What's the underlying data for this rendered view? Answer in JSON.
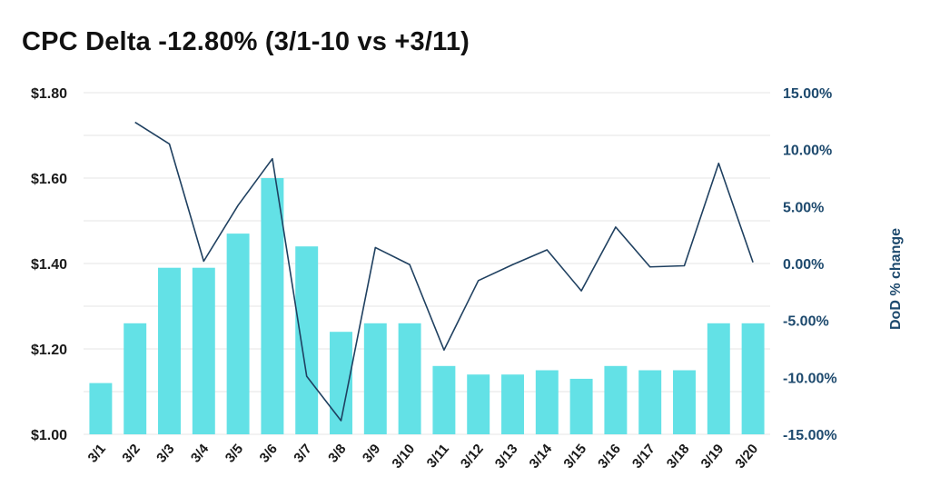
{
  "title": "CPC Delta -12.80% (3/1-10 vs +3/11)",
  "colors": {
    "bar": "#63e1e6",
    "line": "#1f4060",
    "right_axis": "#1e4a6e",
    "grid": "#e6e6e6"
  },
  "chart_data": {
    "type": "bar",
    "title": "CPC Delta -12.80% (3/1-10 vs +3/11)",
    "categories": [
      "3/1",
      "3/2",
      "3/3",
      "3/4",
      "3/5",
      "3/6",
      "3/7",
      "3/8",
      "3/9",
      "3/10",
      "3/11",
      "3/12",
      "3/13",
      "3/14",
      "3/15",
      "3/16",
      "3/17",
      "3/18",
      "3/19",
      "3/20"
    ],
    "left_axis": {
      "ylim": [
        1.0,
        1.8
      ],
      "ticks": [
        "$1.80",
        "$1.60",
        "$1.40",
        "$1.20",
        "$1.00"
      ],
      "tick_values": [
        1.8,
        1.6,
        1.4,
        1.2,
        1.0
      ]
    },
    "right_axis": {
      "label": "DoD % change",
      "ylim": [
        -15,
        15
      ],
      "ticks": [
        "15.00%",
        "10.00%",
        "5.00%",
        "0.00%",
        "-5.00%",
        "-10.00%",
        "-15.00%"
      ],
      "tick_values": [
        15,
        10,
        5,
        0,
        -5,
        -10,
        -15
      ]
    },
    "series": [
      {
        "type": "bar",
        "axis": "left",
        "values": [
          1.12,
          1.26,
          1.39,
          1.39,
          1.47,
          1.6,
          1.44,
          1.24,
          1.26,
          1.26,
          1.16,
          1.14,
          1.14,
          1.15,
          1.13,
          1.16,
          1.15,
          1.15,
          1.26,
          1.26
        ]
      },
      {
        "type": "line",
        "axis": "right",
        "values": [
          null,
          12.4,
          10.5,
          0.2,
          5.1,
          9.2,
          -9.9,
          -13.8,
          1.4,
          -0.1,
          -7.6,
          -1.5,
          -0.1,
          1.2,
          -2.4,
          3.2,
          -0.3,
          -0.2,
          8.8,
          0.1
        ]
      }
    ],
    "grid": true
  }
}
